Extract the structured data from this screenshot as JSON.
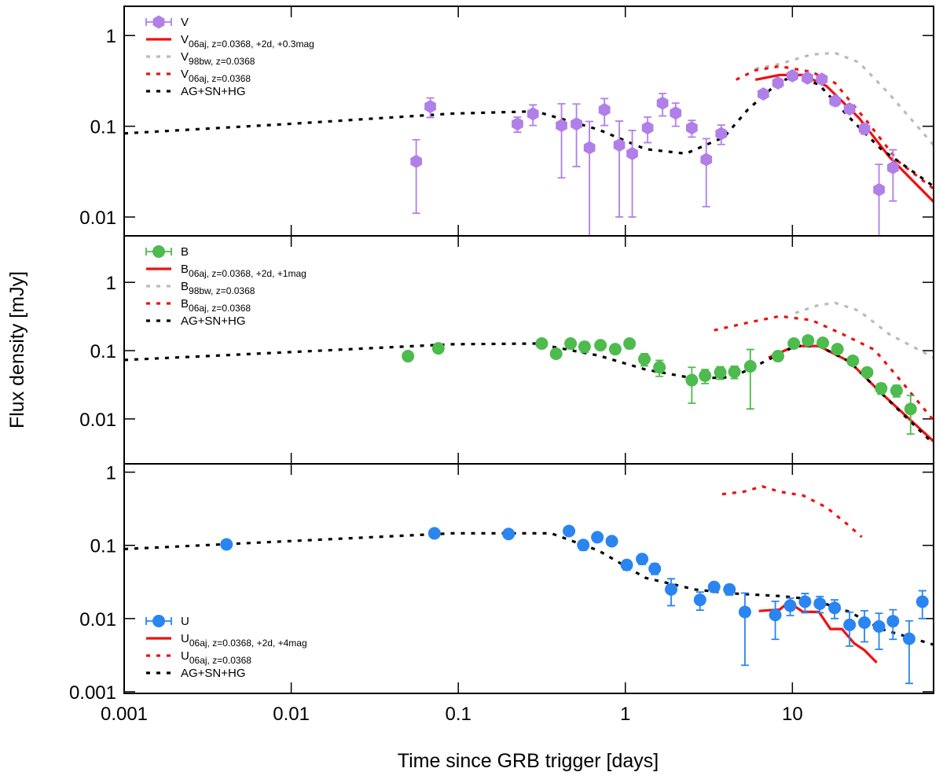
{
  "chart_data": [
    {
      "type": "scatter",
      "yscale": "log",
      "xscale": "log",
      "legend": "upper left",
      "xlim": [
        0.001,
        70
      ],
      "ylim": [
        0.0062,
        2.1
      ],
      "yticks": [
        0.01,
        0.1,
        1
      ],
      "series": [
        {
          "name": "V",
          "color": "#b07fe8",
          "marker": "hexagon",
          "x": [
            0.056,
            0.068,
            0.226,
            0.28,
            0.415,
            0.51,
            0.61,
            0.75,
            0.92,
            1.1,
            1.36,
            1.67,
            2.0,
            2.5,
            3.05,
            3.75,
            6.7,
            8.2,
            10,
            12.3,
            15,
            18,
            22,
            27,
            33,
            40
          ],
          "values": [
            0.041,
            0.165,
            0.106,
            0.137,
            0.102,
            0.106,
            0.058,
            0.152,
            0.062,
            0.05,
            0.096,
            0.18,
            0.14,
            0.096,
            0.043,
            0.083,
            0.227,
            0.3,
            0.36,
            0.34,
            0.33,
            0.19,
            0.155,
            0.094,
            0.02,
            0.035
          ],
          "errors": [
            0.03,
            0.04,
            0.02,
            0.035,
            0.075,
            0.07,
            0.055,
            0.05,
            0.052,
            0.04,
            0.03,
            0.05,
            0.04,
            0.02,
            0.03,
            0.02,
            0.02,
            0.03,
            0.03,
            0.03,
            0.03,
            0.02,
            0.015,
            0.012,
            0.018,
            0.02
          ]
        },
        {
          "name": "V",
          "subscript": "06aj, z=0.0368, +2d, +0.3mag",
          "color": "#ee1111",
          "style": "solid",
          "x": [
            6.0,
            8.4,
            11.6,
            16,
            25,
            38,
            70
          ],
          "values": [
            0.326,
            0.367,
            0.367,
            0.278,
            0.124,
            0.046,
            0.0147
          ]
        },
        {
          "name": "V",
          "subscript": "98bw, z=0.0368",
          "color": "#bbbbbb",
          "style": "dashed",
          "x": [
            6.0,
            8.4,
            13,
            18,
            25,
            38,
            70
          ],
          "values": [
            0.43,
            0.486,
            0.618,
            0.644,
            0.506,
            0.227,
            0.062
          ]
        },
        {
          "name": "V",
          "subscript": "06aj, z=0.0368",
          "color": "#ee1111",
          "style": "dashed",
          "x": [
            4.6,
            6.0,
            8.4,
            13,
            18,
            28,
            43,
            70
          ],
          "values": [
            0.326,
            0.414,
            0.458,
            0.398,
            0.3,
            0.113,
            0.041,
            0.0205
          ]
        },
        {
          "name": "AG+SN+HG",
          "color": "#000000",
          "style": "dashed",
          "x": [
            0.001,
            0.0096,
            0.092,
            0.29,
            0.69,
            1.32,
            2.3,
            3.9,
            5.4,
            8.4,
            10.4,
            14.4,
            22,
            34,
            70
          ],
          "values": [
            0.0835,
            0.106,
            0.138,
            0.146,
            0.092,
            0.056,
            0.05,
            0.076,
            0.152,
            0.313,
            0.353,
            0.289,
            0.124,
            0.056,
            0.0218
          ]
        }
      ]
    },
    {
      "type": "scatter",
      "yscale": "log",
      "xscale": "log",
      "legend": "upper left",
      "ylabel": "Flux density [mJy]",
      "xlim": [
        0.001,
        70
      ],
      "ylim": [
        0.0022,
        4.8
      ],
      "yticks": [
        0.01,
        0.1,
        1
      ],
      "series": [
        {
          "name": "B",
          "color": "#4dbb4d",
          "marker": "circle",
          "x": [
            0.05,
            0.076,
            0.316,
            0.385,
            0.47,
            0.57,
            0.71,
            0.87,
            1.06,
            1.3,
            1.6,
            2.5,
            3.0,
            3.7,
            4.5,
            5.6,
            8.2,
            10.2,
            12.4,
            15.2,
            18.6,
            23,
            28,
            34,
            42,
            51
          ],
          "values": [
            0.083,
            0.108,
            0.127,
            0.09,
            0.127,
            0.114,
            0.12,
            0.105,
            0.127,
            0.075,
            0.057,
            0.037,
            0.043,
            0.048,
            0.049,
            0.059,
            0.083,
            0.127,
            0.141,
            0.13,
            0.105,
            0.071,
            0.048,
            0.028,
            0.026,
            0.014
          ],
          "errors": [
            0.01,
            0.01,
            0.01,
            0.01,
            0.02,
            0.02,
            0.01,
            0.01,
            0.02,
            0.015,
            0.015,
            0.02,
            0.01,
            0.01,
            0.01,
            0.045,
            0.01,
            0.01,
            0.01,
            0.01,
            0.01,
            0.008,
            0.006,
            0.005,
            0.005,
            0.008
          ]
        },
        {
          "name": "B",
          "subscript": "06aj, z=0.0368, +2d, +1mag",
          "color": "#ee1111",
          "style": "solid",
          "x": [
            7.2,
            10.4,
            14.4,
            22,
            34,
            70
          ],
          "values": [
            0.079,
            0.117,
            0.117,
            0.069,
            0.024,
            0.0047
          ]
        },
        {
          "name": "B",
          "subscript": "98bw, z=0.0368",
          "color": "#bbbbbb",
          "style": "dashed",
          "x": [
            10.4,
            14.4,
            18,
            25,
            38,
            70
          ],
          "values": [
            0.356,
            0.464,
            0.502,
            0.385,
            0.174,
            0.079
          ]
        },
        {
          "name": "B",
          "subscript": "06aj, z=0.0368",
          "color": "#ee1111",
          "style": "dashed",
          "x": [
            3.4,
            5.5,
            8.4,
            13,
            20,
            31,
            47,
            70
          ],
          "values": [
            0.199,
            0.259,
            0.32,
            0.28,
            0.174,
            0.103,
            0.031,
            0.0095
          ]
        },
        {
          "name": "AG+SN+HG",
          "color": "#000000",
          "style": "dashed",
          "x": [
            0.001,
            0.0096,
            0.092,
            0.29,
            0.69,
            1.32,
            2.6,
            4.4,
            6.8,
            10.4,
            14.4,
            22,
            34,
            70
          ],
          "values": [
            0.073,
            0.095,
            0.124,
            0.127,
            0.085,
            0.053,
            0.039,
            0.041,
            0.069,
            0.117,
            0.117,
            0.069,
            0.024,
            0.0043
          ]
        }
      ]
    },
    {
      "type": "scatter",
      "yscale": "log",
      "xscale": "log",
      "legend": "lower left",
      "xlabel": "Time since GRB trigger [days]",
      "xlim": [
        0.001,
        70
      ],
      "ylim": [
        0.00095,
        1.3
      ],
      "yticks": [
        0.001,
        0.01,
        0.1,
        1
      ],
      "xticks": [
        0.001,
        0.01,
        0.1,
        1,
        10
      ],
      "series": [
        {
          "name": "U",
          "color": "#2a85f0",
          "marker": "circle",
          "x": [
            0.0041,
            0.072,
            0.2,
            0.46,
            0.56,
            0.68,
            0.83,
            1.02,
            1.26,
            1.5,
            1.88,
            2.8,
            3.4,
            4.2,
            5.2,
            7.9,
            9.7,
            11.9,
            14.6,
            17.9,
            22,
            27,
            33,
            40,
            50,
            60
          ],
          "values": [
            0.103,
            0.146,
            0.143,
            0.157,
            0.101,
            0.129,
            0.114,
            0.054,
            0.065,
            0.048,
            0.025,
            0.018,
            0.027,
            0.025,
            0.0123,
            0.0112,
            0.015,
            0.017,
            0.016,
            0.014,
            0.0082,
            0.0088,
            0.0078,
            0.0092,
            0.0053,
            0.017
          ],
          "errors": [
            0.01,
            0.01,
            0.01,
            0.01,
            0.015,
            0.01,
            0.01,
            0.008,
            0.01,
            0.008,
            0.01,
            0.005,
            0.004,
            0.004,
            0.01,
            0.006,
            0.004,
            0.005,
            0.004,
            0.004,
            0.004,
            0.004,
            0.004,
            0.004,
            0.004,
            0.007
          ]
        },
        {
          "name": "U",
          "subscript": "06aj, z=0.0368, +2d, +4mag",
          "color": "#ee1111",
          "style": "solid",
          "x": [
            6.3,
            8.4,
            9.5,
            11.6,
            14.4,
            16.9,
            19.8,
            23.4,
            27,
            32
          ],
          "values": [
            0.0127,
            0.0133,
            0.0167,
            0.0123,
            0.0123,
            0.0072,
            0.0072,
            0.0046,
            0.0037,
            0.0025
          ]
        },
        {
          "name": "U",
          "subscript": "06aj, z=0.0368",
          "color": "#ee1111",
          "style": "dashed",
          "x": [
            3.8,
            5.1,
            6.6,
            8.4,
            11.6,
            16,
            21,
            26
          ],
          "values": [
            0.5,
            0.54,
            0.64,
            0.54,
            0.48,
            0.33,
            0.2,
            0.13
          ]
        },
        {
          "name": "AG+SN+HG",
          "color": "#000000",
          "style": "dashed",
          "x": [
            0.001,
            0.0096,
            0.092,
            0.36,
            0.69,
            1.32,
            2.6,
            4.4,
            8.4,
            13,
            22,
            34,
            70
          ],
          "values": [
            0.089,
            0.114,
            0.146,
            0.146,
            0.085,
            0.036,
            0.025,
            0.022,
            0.0203,
            0.0184,
            0.0123,
            0.0072,
            0.0044
          ]
        }
      ]
    }
  ]
}
